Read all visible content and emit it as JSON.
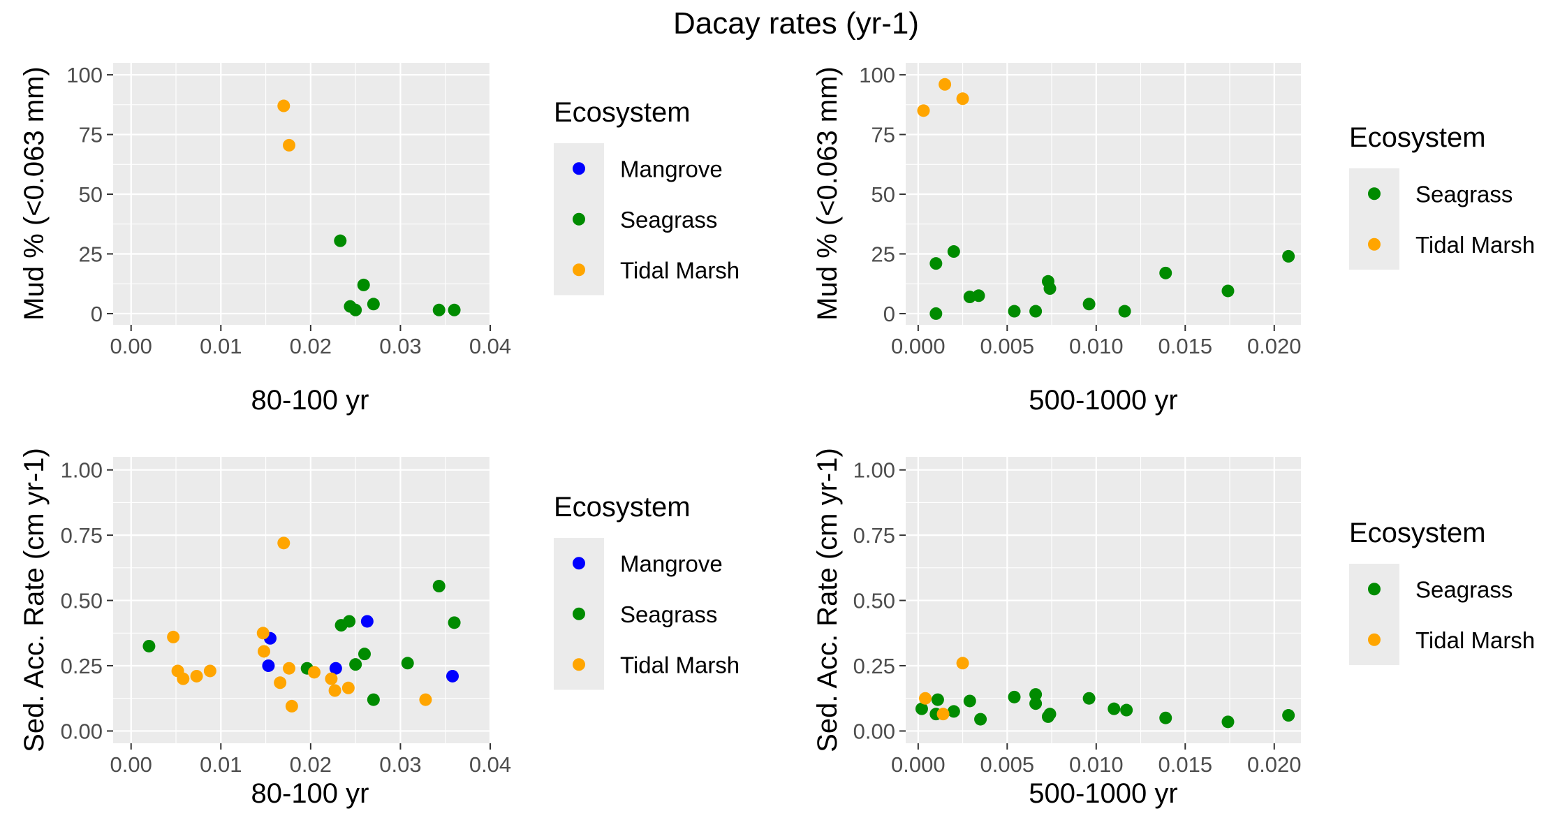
{
  "title": "Dacay rates (yr-1)",
  "colors": {
    "Mangrove": "#0000ff",
    "Seagrass": "#008b00",
    "Tidal Marsh": "#ffa500"
  },
  "chart_data": [
    {
      "type": "scatter",
      "id": "p1",
      "xlabel": "80-100 yr",
      "ylabel": "Mud % (<0.063 mm)",
      "xlim": [
        -0.002,
        0.04
      ],
      "ylim": [
        -4.7,
        105
      ],
      "xticks": [
        0.0,
        0.01,
        0.02,
        0.03,
        0.04
      ],
      "xtick_labels": [
        "0.00",
        "0.01",
        "0.02",
        "0.03",
        "0.04"
      ],
      "yticks": [
        0,
        25,
        50,
        75,
        100
      ],
      "ytick_labels": [
        "0",
        "25",
        "50",
        "75",
        "100"
      ],
      "legend_title": "Ecosystem",
      "legend": [
        "Mangrove",
        "Seagrass",
        "Tidal Marsh"
      ],
      "series": [
        {
          "name": "Seagrass",
          "points": [
            [
              0.0233,
              30.5
            ],
            [
              0.0259,
              12.0
            ],
            [
              0.0244,
              3.0
            ],
            [
              0.025,
              1.5
            ],
            [
              0.027,
              4.0
            ],
            [
              0.0343,
              1.5
            ],
            [
              0.036,
              1.5
            ]
          ]
        },
        {
          "name": "Tidal Marsh",
          "points": [
            [
              0.017,
              87.0
            ],
            [
              0.0176,
              70.5
            ]
          ]
        }
      ]
    },
    {
      "type": "scatter",
      "id": "p2",
      "xlabel": "500-1000 yr",
      "ylabel": "Mud % (<0.063 mm)",
      "xlim": [
        -0.0007,
        0.0215
      ],
      "ylim": [
        -4.7,
        105
      ],
      "xticks": [
        0.0,
        0.005,
        0.01,
        0.015,
        0.02
      ],
      "xtick_labels": [
        "0.000",
        "0.005",
        "0.010",
        "0.015",
        "0.020"
      ],
      "yticks": [
        0,
        25,
        50,
        75,
        100
      ],
      "ytick_labels": [
        "0",
        "25",
        "50",
        "75",
        "100"
      ],
      "legend_title": "Ecosystem",
      "legend": [
        "Seagrass",
        "Tidal Marsh"
      ],
      "series": [
        {
          "name": "Seagrass",
          "points": [
            [
              0.001,
              21.0
            ],
            [
              0.002,
              26.0
            ],
            [
              0.001,
              0.0
            ],
            [
              0.0029,
              7.0
            ],
            [
              0.0034,
              7.5
            ],
            [
              0.0054,
              1.0
            ],
            [
              0.0066,
              1.0
            ],
            [
              0.0073,
              13.5
            ],
            [
              0.0074,
              10.5
            ],
            [
              0.0096,
              4.0
            ],
            [
              0.0116,
              1.0
            ],
            [
              0.0139,
              17.0
            ],
            [
              0.0174,
              9.5
            ],
            [
              0.0208,
              24.0
            ]
          ]
        },
        {
          "name": "Tidal Marsh",
          "points": [
            [
              0.0003,
              85.0
            ],
            [
              0.0015,
              96.0
            ],
            [
              0.0025,
              90.0
            ]
          ]
        }
      ]
    },
    {
      "type": "scatter",
      "id": "p3",
      "xlabel": "80-100 yr",
      "ylabel": "Sed. Acc. Rate (cm yr-1)",
      "xlim": [
        -0.002,
        0.04
      ],
      "ylim": [
        -0.047,
        1.05
      ],
      "xticks": [
        0.0,
        0.01,
        0.02,
        0.03,
        0.04
      ],
      "xtick_labels": [
        "0.00",
        "0.01",
        "0.02",
        "0.03",
        "0.04"
      ],
      "yticks": [
        0.0,
        0.25,
        0.5,
        0.75,
        1.0
      ],
      "ytick_labels": [
        "0.00",
        "0.25",
        "0.50",
        "0.75",
        "1.00"
      ],
      "legend_title": "Ecosystem",
      "legend": [
        "Mangrove",
        "Seagrass",
        "Tidal Marsh"
      ],
      "series": [
        {
          "name": "Mangrove",
          "points": [
            [
              0.0155,
              0.355
            ],
            [
              0.0153,
              0.25
            ],
            [
              0.0228,
              0.24
            ],
            [
              0.0263,
              0.42
            ],
            [
              0.0358,
              0.21
            ]
          ]
        },
        {
          "name": "Seagrass",
          "points": [
            [
              0.002,
              0.325
            ],
            [
              0.0196,
              0.24
            ],
            [
              0.0234,
              0.405
            ],
            [
              0.0243,
              0.42
            ],
            [
              0.025,
              0.255
            ],
            [
              0.026,
              0.295
            ],
            [
              0.027,
              0.12
            ],
            [
              0.0308,
              0.26
            ],
            [
              0.0343,
              0.555
            ],
            [
              0.036,
              0.415
            ]
          ]
        },
        {
          "name": "Tidal Marsh",
          "points": [
            [
              0.0047,
              0.36
            ],
            [
              0.0052,
              0.23
            ],
            [
              0.0058,
              0.2
            ],
            [
              0.0073,
              0.21
            ],
            [
              0.0088,
              0.23
            ],
            [
              0.0147,
              0.375
            ],
            [
              0.0148,
              0.305
            ],
            [
              0.0166,
              0.185
            ],
            [
              0.017,
              0.72
            ],
            [
              0.0176,
              0.24
            ],
            [
              0.0179,
              0.095
            ],
            [
              0.0204,
              0.225
            ],
            [
              0.0223,
              0.2
            ],
            [
              0.0227,
              0.155
            ],
            [
              0.0242,
              0.165
            ],
            [
              0.0328,
              0.12
            ]
          ]
        }
      ]
    },
    {
      "type": "scatter",
      "id": "p4",
      "xlabel": "500-1000 yr",
      "ylabel": "Sed. Acc. Rate (cm yr-1)",
      "xlim": [
        -0.0007,
        0.0215
      ],
      "ylim": [
        -0.047,
        1.05
      ],
      "xticks": [
        0.0,
        0.005,
        0.01,
        0.015,
        0.02
      ],
      "xtick_labels": [
        "0.000",
        "0.005",
        "0.010",
        "0.015",
        "0.020"
      ],
      "yticks": [
        0.0,
        0.25,
        0.5,
        0.75,
        1.0
      ],
      "ytick_labels": [
        "0.00",
        "0.25",
        "0.50",
        "0.75",
        "1.00"
      ],
      "legend_title": "Ecosystem",
      "legend": [
        "Seagrass",
        "Tidal Marsh"
      ],
      "series": [
        {
          "name": "Seagrass",
          "points": [
            [
              0.0002,
              0.085
            ],
            [
              0.001,
              0.065
            ],
            [
              0.0011,
              0.12
            ],
            [
              0.002,
              0.075
            ],
            [
              0.0029,
              0.115
            ],
            [
              0.0035,
              0.045
            ],
            [
              0.0054,
              0.13
            ],
            [
              0.0066,
              0.14
            ],
            [
              0.0066,
              0.105
            ],
            [
              0.0073,
              0.055
            ],
            [
              0.0074,
              0.065
            ],
            [
              0.0096,
              0.125
            ],
            [
              0.011,
              0.085
            ],
            [
              0.0117,
              0.08
            ],
            [
              0.0139,
              0.05
            ],
            [
              0.0174,
              0.035
            ],
            [
              0.0208,
              0.06
            ]
          ]
        },
        {
          "name": "Tidal Marsh",
          "points": [
            [
              0.0004,
              0.125
            ],
            [
              0.0014,
              0.065
            ],
            [
              0.0025,
              0.26
            ]
          ]
        }
      ]
    }
  ]
}
